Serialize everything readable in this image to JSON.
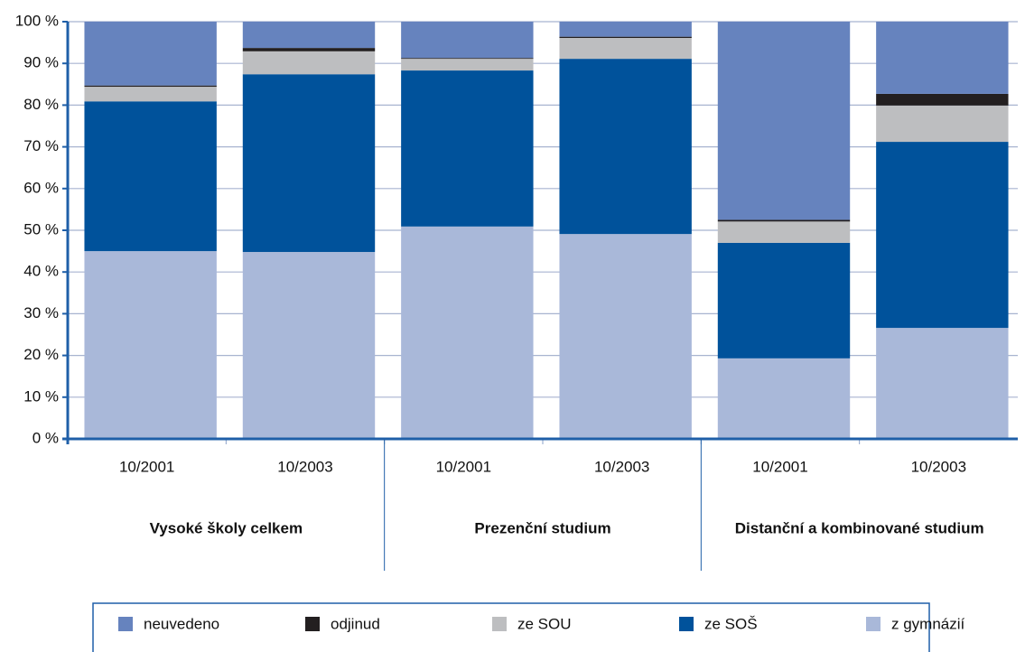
{
  "chart_data": {
    "type": "stacked-bar",
    "categories": [
      "10/2001",
      "10/2003",
      "10/2001",
      "10/2003",
      "10/2001",
      "10/2003"
    ],
    "groups": [
      "Vysoké školy celkem",
      "Prezenční studium",
      "Distanční a kombinované studium"
    ],
    "series": [
      {
        "name": "neuvedeno",
        "color": "#6683be",
        "values": [
          15.3,
          6.3,
          8.7,
          3.6,
          47.5,
          17.3
        ]
      },
      {
        "name": "odjinud",
        "color": "#231f20",
        "values": [
          0.3,
          0.8,
          0.2,
          0.3,
          0.4,
          2.8
        ]
      },
      {
        "name": "ze SOU",
        "color": "#bdbec0",
        "values": [
          3.5,
          5.5,
          2.8,
          5.0,
          5.1,
          8.7
        ]
      },
      {
        "name": "ze SOŠ",
        "color": "#00529b",
        "values": [
          35.9,
          42.6,
          37.4,
          42.0,
          27.7,
          44.6
        ]
      },
      {
        "name": "z gymnázií",
        "color": "#a9b8d9",
        "values": [
          45.0,
          44.8,
          50.9,
          49.1,
          19.3,
          26.6
        ]
      }
    ],
    "ylim": [
      0,
      100
    ],
    "yticks": [
      {
        "value": 0,
        "label": "0 %"
      },
      {
        "value": 10,
        "label": "10 %"
      },
      {
        "value": 20,
        "label": "20 %"
      },
      {
        "value": 30,
        "label": "30 %"
      },
      {
        "value": 40,
        "label": "40 %"
      },
      {
        "value": 50,
        "label": "50 %"
      },
      {
        "value": 60,
        "label": "60 %"
      },
      {
        "value": 70,
        "label": "70 %"
      },
      {
        "value": 80,
        "label": "80 %"
      },
      {
        "value": 90,
        "label": "90 %"
      },
      {
        "value": 100,
        "label": "100 %"
      }
    ],
    "grid": true
  }
}
